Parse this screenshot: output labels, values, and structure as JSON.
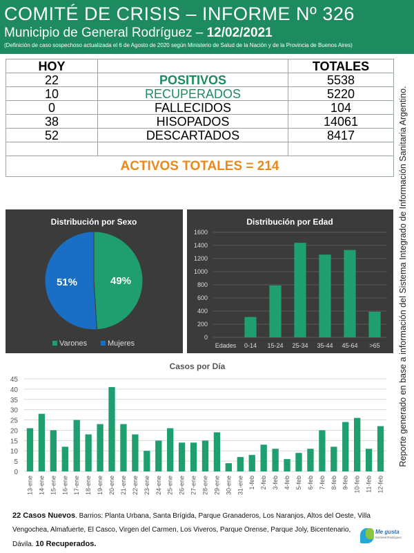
{
  "header": {
    "title": "COMITÉ DE CRISIS – INFORME Nº 326",
    "subtitle_prefix": "Municipio de General Rodríguez – ",
    "subtitle_date": "12/02/2021",
    "note": "(Definición de caso sospechoso actualizada el 6 de Agosto de 2020 según Ministerio de Salud de la Nación y de la Provincia de Buenos Aires)"
  },
  "table": {
    "col_hoy": "HOY",
    "col_totales": "TOTALES",
    "rows": [
      {
        "hoy": "22",
        "label": "POSITIVOS",
        "total": "5538"
      },
      {
        "hoy": "10",
        "label": "RECUPERADOS",
        "total": "5220"
      },
      {
        "hoy": "0",
        "label": "FALLECIDOS",
        "total": "104"
      },
      {
        "hoy": "38",
        "label": "HISOPADOS",
        "total": "14061"
      },
      {
        "hoy": "52",
        "label": "DESCARTADOS",
        "total": "8417"
      }
    ],
    "activos": "ACTIVOS TOTALES = 214"
  },
  "side_text": "Reporte generado en base a información del Sistema Integrado de Información Sanitaria Argentino.",
  "colors": {
    "green": "#1d8a5f",
    "bar": "#1f9e6f",
    "blue": "#1a6fc4",
    "orange": "#e8891a",
    "panel": "#3b3b3b"
  },
  "chart_data": [
    {
      "type": "pie",
      "title": "Distribución por Sexo",
      "labels": [
        "Varones",
        "Mujeres"
      ],
      "values": [
        49,
        51
      ],
      "value_labels": [
        "49%",
        "51%"
      ],
      "colors": [
        "#1f9e6f",
        "#1a6fc4"
      ],
      "legend": "bottom"
    },
    {
      "type": "bar",
      "title": "Distribución por Edad",
      "xlabel": "Edades",
      "categories": [
        "0-14",
        "15-24",
        "25-34",
        "35-44",
        "45-64",
        ">65"
      ],
      "values": [
        310,
        790,
        1440,
        1260,
        1330,
        390
      ],
      "ylim": [
        0,
        1600
      ],
      "yticks": [
        0,
        200,
        400,
        600,
        800,
        1000,
        1200,
        1400,
        1600
      ],
      "grid": true
    },
    {
      "type": "bar",
      "title": "Casos por Día",
      "categories": [
        "13-ene",
        "14-ene",
        "15-ene",
        "16-ene",
        "17-ene",
        "18-ene",
        "19-ene",
        "20-ene",
        "21-ene",
        "22-ene",
        "23-ene",
        "24-ene",
        "25-ene",
        "26-ene",
        "27-ene",
        "28-ene",
        "29-ene",
        "30-ene",
        "31-ene",
        "1-feb",
        "2-feb",
        "3-feb",
        "4-feb",
        "5-feb",
        "6-feb",
        "7-feb",
        "8-feb",
        "9-feb",
        "10-feb",
        "11-feb",
        "12-feb"
      ],
      "values": [
        21,
        28,
        20,
        12,
        25,
        18,
        23,
        41,
        23,
        18,
        10,
        15,
        21,
        14,
        14,
        15,
        19,
        4,
        7,
        8,
        13,
        11,
        6,
        9,
        11,
        20,
        12,
        24,
        26,
        11,
        22
      ],
      "ylim": [
        0,
        45
      ],
      "yticks": [
        0,
        5,
        10,
        15,
        20,
        25,
        30,
        35,
        40,
        45
      ],
      "grid": true
    }
  ],
  "footer": {
    "new_cases": "22 Casos Nuevos",
    "barrios": ". Barrios: Planta Urbana, Santa Brígida, Parque Granaderos, Los Naranjos, Altos del Oeste, Villa Vengochea, Almafuerte, El Casco, Virgen del Carmen, Los Viveros, Parque Orense, Parque Joly, Bicentenario, Dávila. ",
    "recovered": "10 Recuperados."
  },
  "logo": {
    "name": "Me gusta",
    "sub": "General Rodríguez"
  }
}
